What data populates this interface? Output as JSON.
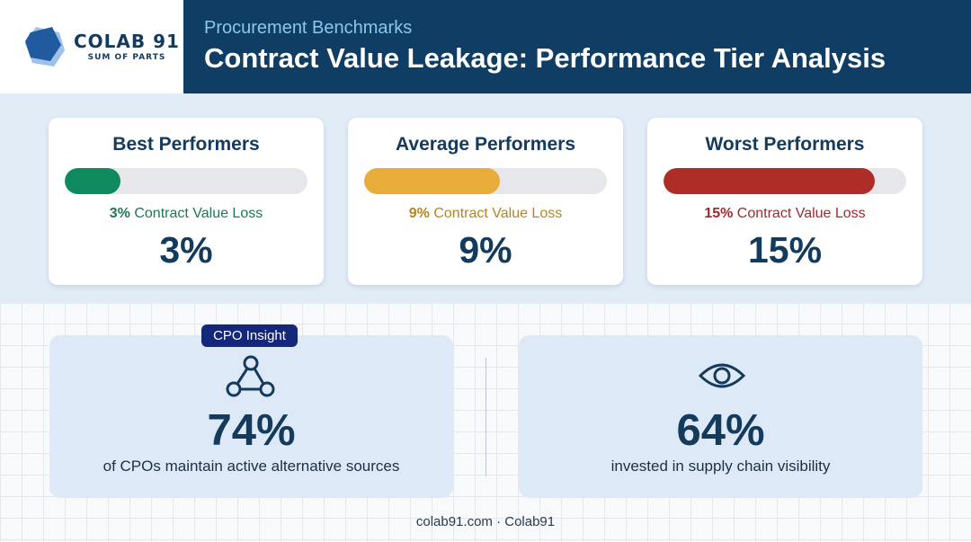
{
  "brand": {
    "name": "COLAB 91",
    "tagline": "SUM OF PARTS",
    "colors": {
      "navy": "#0f3d63",
      "logo_dark": "#1f5b9e",
      "logo_light": "#9fc2ea"
    }
  },
  "header": {
    "kicker": "Procurement Benchmarks",
    "title": "Contract Value Leakage: Performance Tier Analysis"
  },
  "tiers": [
    {
      "title": "Best Performers",
      "label_pct": "3%",
      "label_text": " Contract Value Loss",
      "value": "3%",
      "fill_fraction": 0.23,
      "color": "#0f8a5f"
    },
    {
      "title": "Average Performers",
      "label_pct": "9%",
      "label_text": " Contract Value Loss",
      "value": "9%",
      "fill_fraction": 0.56,
      "color": "#e8ac3a"
    },
    {
      "title": "Worst Performers",
      "label_pct": "15%",
      "label_text": " Contract Value Loss",
      "value": "15%",
      "fill_fraction": 0.87,
      "color": "#ae2e27"
    }
  ],
  "tier_label_colors": [
    "#1b7a4f",
    "#b8841f",
    "#a4282b"
  ],
  "stats": [
    {
      "badge": "CPO Insight",
      "icon": "network-nodes-icon",
      "value": "74%",
      "caption": "of CPOs maintain active alternative sources"
    },
    {
      "icon": "eye-icon",
      "value": "64%",
      "caption": "invested in supply chain visibility"
    }
  ],
  "footer": {
    "text": "colab91.com · Colab91"
  }
}
